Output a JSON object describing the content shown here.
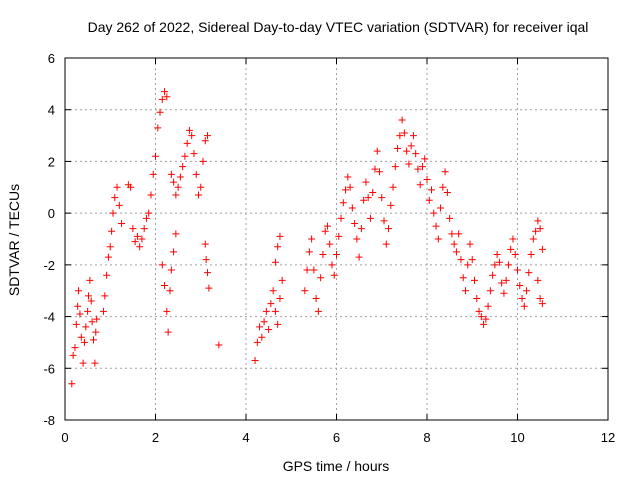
{
  "chart_data": {
    "type": "scatter",
    "title": "Day 262 of 2022, Sidereal Day-to-day VTEC variation (SDTVAR) for receiver iqal",
    "xlabel": "GPS time / hours",
    "ylabel": "SDTVAR / TECUs",
    "xlim": [
      0,
      12
    ],
    "ylim": [
      -8,
      6
    ],
    "x_ticks": [
      0,
      2,
      4,
      6,
      8,
      10,
      12
    ],
    "y_ticks": [
      -8,
      -6,
      -4,
      -2,
      0,
      2,
      4,
      6
    ],
    "grid": true,
    "marker": "+",
    "series": [
      {
        "name": "SDTVAR",
        "color": "#ff0000",
        "points": [
          [
            0.15,
            -6.6
          ],
          [
            0.18,
            -5.5
          ],
          [
            0.22,
            -5.2
          ],
          [
            0.25,
            -4.3
          ],
          [
            0.28,
            -3.6
          ],
          [
            0.3,
            -3.0
          ],
          [
            0.33,
            -3.9
          ],
          [
            0.36,
            -4.8
          ],
          [
            0.4,
            -5.8
          ],
          [
            0.43,
            -5.0
          ],
          [
            0.46,
            -4.4
          ],
          [
            0.5,
            -3.8
          ],
          [
            0.52,
            -3.2
          ],
          [
            0.55,
            -2.6
          ],
          [
            0.58,
            -3.4
          ],
          [
            0.6,
            -4.2
          ],
          [
            0.63,
            -4.9
          ],
          [
            0.66,
            -5.8
          ],
          [
            0.68,
            -4.6
          ],
          [
            0.7,
            -4.1
          ],
          [
            0.85,
            -3.8
          ],
          [
            0.88,
            -3.2
          ],
          [
            0.92,
            -2.4
          ],
          [
            0.96,
            -1.7
          ],
          [
            1.0,
            -1.3
          ],
          [
            1.03,
            -0.7
          ],
          [
            1.06,
            0.0
          ],
          [
            1.1,
            0.6
          ],
          [
            1.15,
            1.0
          ],
          [
            1.2,
            0.3
          ],
          [
            1.25,
            -0.4
          ],
          [
            1.4,
            1.1
          ],
          [
            1.45,
            1.0
          ],
          [
            1.5,
            -0.6
          ],
          [
            1.55,
            -1.1
          ],
          [
            1.6,
            -0.9
          ],
          [
            1.65,
            -1.3
          ],
          [
            1.7,
            -1.0
          ],
          [
            1.75,
            -0.6
          ],
          [
            1.8,
            -0.2
          ],
          [
            1.85,
            0.0
          ],
          [
            1.9,
            0.7
          ],
          [
            1.95,
            1.5
          ],
          [
            2.0,
            2.2
          ],
          [
            2.05,
            3.3
          ],
          [
            2.1,
            3.9
          ],
          [
            2.15,
            4.4
          ],
          [
            2.2,
            4.7
          ],
          [
            2.25,
            4.5
          ],
          [
            2.15,
            -2.0
          ],
          [
            2.2,
            -2.8
          ],
          [
            2.25,
            -3.8
          ],
          [
            2.28,
            -4.6
          ],
          [
            2.32,
            -3.0
          ],
          [
            2.35,
            -2.2
          ],
          [
            2.4,
            -1.5
          ],
          [
            2.45,
            -0.8
          ],
          [
            2.35,
            1.5
          ],
          [
            2.4,
            1.2
          ],
          [
            2.45,
            0.7
          ],
          [
            2.5,
            1.0
          ],
          [
            2.55,
            1.4
          ],
          [
            2.6,
            1.8
          ],
          [
            2.65,
            2.2
          ],
          [
            2.7,
            2.7
          ],
          [
            2.75,
            3.2
          ],
          [
            2.8,
            3.0
          ],
          [
            2.85,
            2.3
          ],
          [
            2.9,
            1.5
          ],
          [
            2.95,
            0.7
          ],
          [
            3.0,
            1.0
          ],
          [
            3.05,
            2.0
          ],
          [
            3.1,
            2.8
          ],
          [
            3.15,
            3.0
          ],
          [
            3.1,
            -1.2
          ],
          [
            3.12,
            -1.8
          ],
          [
            3.15,
            -2.3
          ],
          [
            3.18,
            -2.9
          ],
          [
            3.4,
            -5.1
          ],
          [
            4.2,
            -5.7
          ],
          [
            4.25,
            -5.0
          ],
          [
            4.3,
            -4.4
          ],
          [
            4.35,
            -4.8
          ],
          [
            4.4,
            -4.2
          ],
          [
            4.45,
            -3.8
          ],
          [
            4.5,
            -4.5
          ],
          [
            4.55,
            -3.5
          ],
          [
            4.6,
            -3.0
          ],
          [
            4.65,
            -3.8
          ],
          [
            4.7,
            -4.3
          ],
          [
            4.75,
            -3.3
          ],
          [
            4.8,
            -2.6
          ],
          [
            4.65,
            -1.9
          ],
          [
            4.7,
            -1.3
          ],
          [
            4.75,
            -0.9
          ],
          [
            5.3,
            -3.0
          ],
          [
            5.35,
            -2.2
          ],
          [
            5.4,
            -1.5
          ],
          [
            5.45,
            -1.0
          ],
          [
            5.5,
            -2.2
          ],
          [
            5.55,
            -3.3
          ],
          [
            5.6,
            -3.8
          ],
          [
            5.65,
            -2.5
          ],
          [
            5.7,
            -1.6
          ],
          [
            5.75,
            -0.7
          ],
          [
            5.8,
            -0.5
          ],
          [
            5.85,
            -1.2
          ],
          [
            5.9,
            -2.0
          ],
          [
            5.95,
            -2.4
          ],
          [
            6.0,
            -1.6
          ],
          [
            6.05,
            -0.9
          ],
          [
            6.1,
            -0.2
          ],
          [
            6.15,
            0.4
          ],
          [
            6.2,
            0.9
          ],
          [
            6.25,
            1.4
          ],
          [
            6.3,
            1.0
          ],
          [
            6.35,
            0.2
          ],
          [
            6.4,
            -0.4
          ],
          [
            6.45,
            -1.0
          ],
          [
            6.5,
            -1.7
          ],
          [
            6.55,
            -0.6
          ],
          [
            6.6,
            0.5
          ],
          [
            6.65,
            1.2
          ],
          [
            6.7,
            0.6
          ],
          [
            6.75,
            -0.2
          ],
          [
            6.8,
            0.8
          ],
          [
            6.85,
            1.7
          ],
          [
            6.9,
            2.4
          ],
          [
            6.95,
            1.6
          ],
          [
            7.0,
            0.6
          ],
          [
            7.05,
            -0.3
          ],
          [
            7.1,
            -1.2
          ],
          [
            7.15,
            -0.6
          ],
          [
            7.2,
            0.3
          ],
          [
            7.25,
            1.0
          ],
          [
            7.3,
            1.8
          ],
          [
            7.35,
            2.5
          ],
          [
            7.4,
            3.0
          ],
          [
            7.45,
            3.6
          ],
          [
            7.5,
            3.1
          ],
          [
            7.55,
            2.4
          ],
          [
            7.6,
            1.9
          ],
          [
            7.65,
            2.6
          ],
          [
            7.7,
            3.0
          ],
          [
            7.75,
            2.3
          ],
          [
            7.8,
            1.7
          ],
          [
            7.85,
            1.1
          ],
          [
            7.9,
            1.8
          ],
          [
            7.95,
            2.1
          ],
          [
            8.0,
            1.3
          ],
          [
            8.05,
            0.5
          ],
          [
            8.1,
            0.9
          ],
          [
            8.15,
            0.0
          ],
          [
            8.2,
            -0.5
          ],
          [
            8.25,
            -1.0
          ],
          [
            8.3,
            0.2
          ],
          [
            8.35,
            1.0
          ],
          [
            8.4,
            1.6
          ],
          [
            8.45,
            0.8
          ],
          [
            8.5,
            -0.2
          ],
          [
            8.55,
            -0.8
          ],
          [
            8.6,
            -1.2
          ],
          [
            8.65,
            -1.5
          ],
          [
            8.7,
            -0.8
          ],
          [
            8.75,
            -1.8
          ],
          [
            8.8,
            -2.5
          ],
          [
            8.85,
            -3.0
          ],
          [
            8.9,
            -2.0
          ],
          [
            8.95,
            -1.2
          ],
          [
            9.0,
            -1.8
          ],
          [
            9.05,
            -2.6
          ],
          [
            9.1,
            -3.3
          ],
          [
            9.15,
            -3.8
          ],
          [
            9.2,
            -4.0
          ],
          [
            9.25,
            -4.3
          ],
          [
            9.3,
            -4.1
          ],
          [
            9.35,
            -3.6
          ],
          [
            9.4,
            -3.0
          ],
          [
            9.45,
            -2.4
          ],
          [
            9.5,
            -2.0
          ],
          [
            9.55,
            -1.6
          ],
          [
            9.6,
            -1.9
          ],
          [
            9.65,
            -2.7
          ],
          [
            9.7,
            -3.1
          ],
          [
            9.75,
            -2.6
          ],
          [
            9.8,
            -2.0
          ],
          [
            9.85,
            -1.4
          ],
          [
            9.9,
            -1.0
          ],
          [
            9.95,
            -1.6
          ],
          [
            10.0,
            -2.2
          ],
          [
            10.05,
            -2.8
          ],
          [
            10.1,
            -3.3
          ],
          [
            10.15,
            -3.6
          ],
          [
            10.2,
            -3.0
          ],
          [
            10.25,
            -2.3
          ],
          [
            10.3,
            -1.6
          ],
          [
            10.35,
            -1.0
          ],
          [
            10.4,
            -0.7
          ],
          [
            10.45,
            -0.3
          ],
          [
            10.5,
            -0.6
          ],
          [
            10.55,
            -1.4
          ],
          [
            10.45,
            -2.6
          ],
          [
            10.5,
            -3.3
          ],
          [
            10.55,
            -3.5
          ]
        ]
      }
    ]
  }
}
